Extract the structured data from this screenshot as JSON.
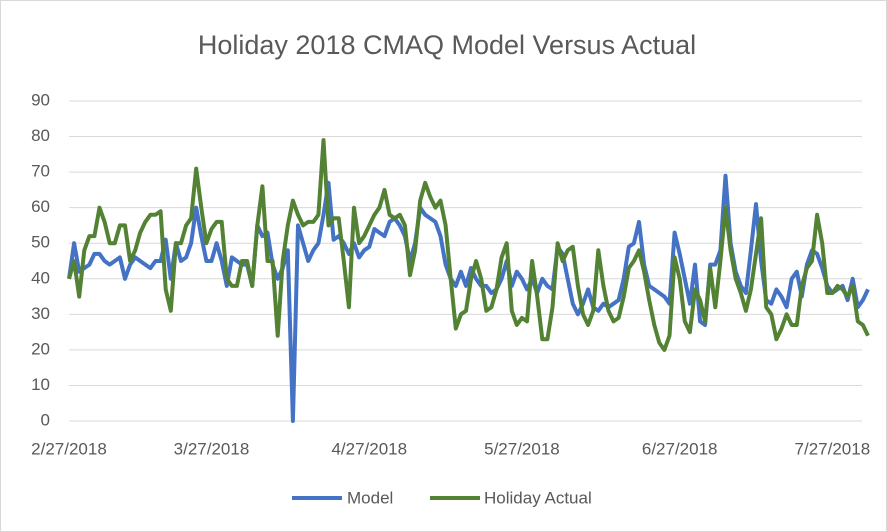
{
  "chart_data": {
    "type": "line",
    "title": "Holiday 2018 CMAQ Model Versus Actual",
    "x": [
      "2/27/2018",
      "2/28/2018",
      "3/1/2018",
      "3/2/2018",
      "3/3/2018",
      "3/4/2018",
      "3/5/2018",
      "3/6/2018",
      "3/7/2018",
      "3/8/2018",
      "3/9/2018",
      "3/10/2018",
      "3/11/2018",
      "3/12/2018",
      "3/13/2018",
      "3/14/2018",
      "3/15/2018",
      "3/16/2018",
      "3/17/2018",
      "3/18/2018",
      "3/19/2018",
      "3/20/2018",
      "3/21/2018",
      "3/22/2018",
      "3/23/2018",
      "3/24/2018",
      "3/25/2018",
      "3/26/2018",
      "3/27/2018",
      "3/28/2018",
      "3/29/2018",
      "3/30/2018",
      "3/31/2018",
      "4/1/2018",
      "4/2/2018",
      "4/3/2018",
      "4/4/2018",
      "4/5/2018",
      "4/6/2018",
      "4/7/2018",
      "4/8/2018",
      "4/9/2018",
      "4/10/2018",
      "4/11/2018",
      "4/12/2018",
      "4/13/2018",
      "4/14/2018",
      "4/15/2018",
      "4/16/2018",
      "4/17/2018",
      "4/18/2018",
      "4/19/2018",
      "4/20/2018",
      "4/21/2018",
      "4/22/2018",
      "4/23/2018",
      "4/24/2018",
      "4/25/2018",
      "4/26/2018",
      "4/27/2018",
      "4/28/2018",
      "4/29/2018",
      "4/30/2018",
      "5/1/2018",
      "5/2/2018",
      "5/3/2018",
      "5/4/2018",
      "5/5/2018",
      "5/6/2018",
      "5/7/2018",
      "5/8/2018",
      "5/9/2018",
      "5/10/2018",
      "5/11/2018",
      "5/12/2018",
      "5/13/2018",
      "5/14/2018",
      "5/15/2018",
      "5/16/2018",
      "5/17/2018",
      "5/18/2018",
      "5/19/2018",
      "5/20/2018",
      "5/21/2018",
      "5/22/2018",
      "5/23/2018",
      "5/24/2018",
      "5/25/2018",
      "5/26/2018",
      "5/27/2018",
      "5/28/2018",
      "5/29/2018",
      "5/30/2018",
      "5/31/2018",
      "6/1/2018",
      "6/2/2018",
      "6/3/2018",
      "6/4/2018",
      "6/5/2018",
      "6/6/2018",
      "6/7/2018",
      "6/8/2018",
      "6/9/2018",
      "6/10/2018",
      "6/11/2018",
      "6/12/2018",
      "6/13/2018",
      "6/14/2018",
      "6/15/2018",
      "6/16/2018",
      "6/17/2018",
      "6/18/2018",
      "6/19/2018",
      "6/20/2018",
      "6/21/2018",
      "6/22/2018",
      "6/23/2018",
      "6/24/2018",
      "6/25/2018",
      "6/26/2018",
      "6/27/2018",
      "6/28/2018",
      "6/29/2018",
      "6/30/2018",
      "7/1/2018",
      "7/2/2018",
      "7/3/2018",
      "7/4/2018",
      "7/5/2018",
      "7/6/2018",
      "7/7/2018",
      "7/8/2018",
      "7/9/2018",
      "7/10/2018",
      "7/11/2018",
      "7/12/2018",
      "7/13/2018",
      "7/14/2018",
      "7/15/2018",
      "7/16/2018",
      "7/17/2018",
      "7/18/2018",
      "7/19/2018",
      "7/20/2018",
      "7/21/2018",
      "7/22/2018",
      "7/23/2018",
      "7/24/2018",
      "7/25/2018",
      "7/26/2018",
      "7/27/2018",
      "7/28/2018",
      "7/29/2018",
      "7/30/2018",
      "7/31/2018",
      "8/1/2018",
      "8/2/2018",
      "8/3/2018"
    ],
    "series": [
      {
        "name": "Model",
        "color": "#4472c4",
        "values": [
          40,
          50,
          42,
          43,
          44,
          47,
          47,
          45,
          44,
          45,
          46,
          40,
          44,
          46,
          45,
          44,
          43,
          45,
          45,
          51,
          40,
          50,
          45,
          46,
          50,
          60,
          52,
          45,
          45,
          50,
          45,
          38,
          46,
          45,
          44,
          44,
          38,
          55,
          52,
          53,
          44,
          40,
          43,
          48,
          0,
          55,
          50,
          45,
          48,
          50,
          58,
          67,
          51,
          52,
          50,
          47,
          50,
          46,
          48,
          49,
          54,
          53,
          52,
          56,
          57,
          55,
          52,
          45,
          50,
          60,
          58,
          57,
          56,
          52,
          44,
          40,
          38,
          42,
          38,
          43,
          40,
          38,
          38,
          36,
          37,
          40,
          45,
          38,
          42,
          40,
          37,
          40,
          36,
          40,
          38,
          37,
          49,
          47,
          40,
          33,
          30,
          33,
          37,
          32,
          31,
          33,
          32,
          33,
          34,
          40,
          49,
          50,
          56,
          44,
          38,
          37,
          36,
          35,
          33,
          53,
          47,
          40,
          33,
          44,
          28,
          27,
          44,
          44,
          48,
          69,
          50,
          42,
          38,
          36,
          48,
          61,
          45,
          34,
          33,
          37,
          35,
          32,
          40,
          42,
          35,
          44,
          48,
          47,
          43,
          38,
          36,
          37,
          38,
          34,
          40,
          32,
          34,
          37
        ]
      },
      {
        "name": "Holiday Actual",
        "color": "#548235",
        "values": [
          40,
          45,
          35,
          48,
          52,
          52,
          60,
          56,
          50,
          50,
          55,
          55,
          45,
          48,
          53,
          56,
          58,
          58,
          59,
          37,
          31,
          50,
          50,
          55,
          57,
          71,
          60,
          50,
          54,
          56,
          56,
          40,
          38,
          38,
          45,
          45,
          38,
          55,
          66,
          45,
          45,
          24,
          45,
          55,
          62,
          58,
          55,
          56,
          56,
          58,
          79,
          55,
          57,
          57,
          45,
          32,
          60,
          50,
          52,
          55,
          58,
          60,
          65,
          58,
          57,
          58,
          55,
          41,
          48,
          62,
          67,
          63,
          60,
          62,
          55,
          40,
          26,
          30,
          31,
          40,
          45,
          40,
          31,
          32,
          37,
          46,
          50,
          31,
          27,
          29,
          28,
          45,
          35,
          23,
          23,
          32,
          50,
          45,
          48,
          49,
          38,
          30,
          27,
          31,
          48,
          38,
          31,
          28,
          29,
          35,
          43,
          45,
          48,
          42,
          34,
          27,
          22,
          20,
          24,
          46,
          40,
          28,
          25,
          37,
          34,
          28,
          43,
          32,
          45,
          60,
          48,
          40,
          36,
          31,
          37,
          47,
          57,
          32,
          30,
          23,
          26,
          30,
          27,
          27,
          38,
          43,
          45,
          58,
          50,
          36,
          36,
          38,
          37,
          35,
          38,
          28,
          27,
          24
        ]
      }
    ],
    "xlim": [
      "2/27/2018",
      "8/3/2018"
    ],
    "xticks": [
      "2/27/2018",
      "3/27/2018",
      "4/27/2018",
      "5/27/2018",
      "6/27/2018",
      "7/27/2018"
    ],
    "ylim": [
      0,
      90
    ],
    "yticks": [
      0,
      10,
      20,
      30,
      40,
      50,
      60,
      70,
      80,
      90
    ],
    "grid": true,
    "legend": "bottom"
  }
}
